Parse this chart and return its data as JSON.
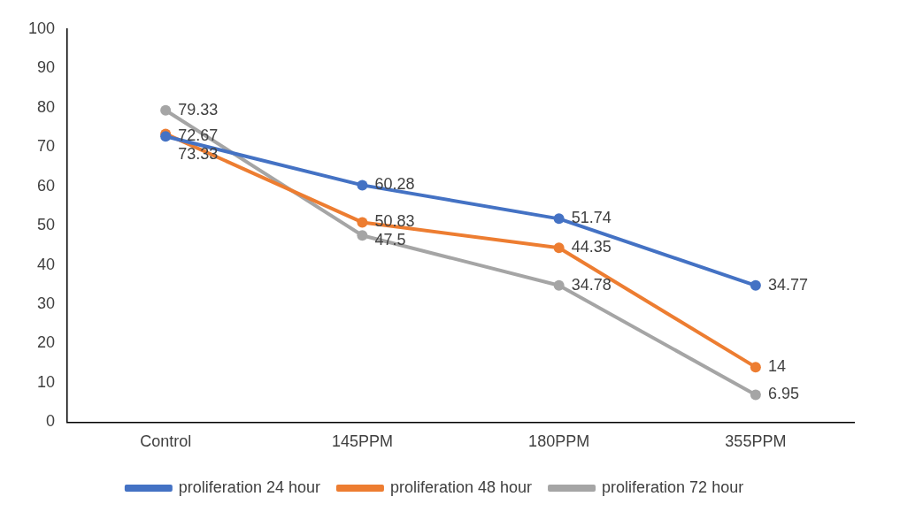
{
  "chart_data": {
    "type": "line",
    "categories": [
      "Control",
      "145PPM",
      "180PPM",
      "355PPM"
    ],
    "series": [
      {
        "name": "proliferation 24 hour",
        "color": "#4472c4",
        "values": [
          72.67,
          60.28,
          51.74,
          34.77
        ]
      },
      {
        "name": "proliferation 48 hour",
        "color": "#ed7d31",
        "values": [
          73.33,
          50.83,
          44.35,
          14
        ]
      },
      {
        "name": "proliferation 72 hour",
        "color": "#a5a5a5",
        "values": [
          79.33,
          47.5,
          34.78,
          6.95
        ]
      }
    ],
    "ylim": [
      0,
      100
    ],
    "yticks": [
      0,
      10,
      20,
      30,
      40,
      50,
      60,
      70,
      80,
      90,
      100
    ],
    "grid": false,
    "legend": "bottom",
    "marker": "circle",
    "line_style": "solid",
    "data_labels": true
  }
}
